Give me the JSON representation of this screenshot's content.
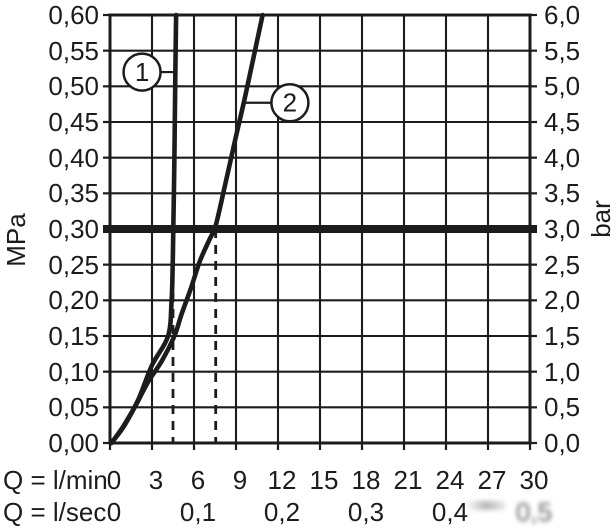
{
  "colors": {
    "ink": "#1c1c1c",
    "background": "#ffffff"
  },
  "chart_data": {
    "type": "line",
    "title": "",
    "description": "Flow rate vs. pressure diagram with two curves and a 0.3 MPa (3 bar) reference line",
    "grid": true,
    "y_axis_left": {
      "unit": "MPa",
      "min": 0,
      "max": 0.6,
      "tick_step": 0.05,
      "tick_labels": [
        "0,60",
        "0,55",
        "0,50",
        "0,45",
        "0,40",
        "0,35",
        "0,30",
        "0,25",
        "0,20",
        "0,15",
        "0,10",
        "0,05",
        "0,00"
      ]
    },
    "y_axis_right": {
      "unit": "bar",
      "min": 0,
      "max": 6,
      "tick_step": 0.5,
      "tick_labels": [
        "6,0",
        "5,5",
        "5,0",
        "4,5",
        "4,0",
        "3,5",
        "3,0",
        "2,5",
        "2,0",
        "1,5",
        "1,0",
        "0,5",
        "0,0"
      ]
    },
    "x_axis": {
      "unit_label": "Q = l/min",
      "min": 0,
      "max": 30,
      "tick_step": 3,
      "tick_labels": [
        "0",
        "3",
        "6",
        "9",
        "12",
        "15",
        "18",
        "21",
        "24",
        "27",
        "30"
      ]
    },
    "x_axis_secondary": {
      "unit_label": "Q = l/sec",
      "ticks": [
        {
          "label": "0",
          "at_lmin": 0,
          "blurred": false
        },
        {
          "label": "0,1",
          "at_lmin": 6,
          "blurred": false
        },
        {
          "label": "0,2",
          "at_lmin": 12,
          "blurred": false
        },
        {
          "label": "0,3",
          "at_lmin": 18,
          "blurred": false
        },
        {
          "label": "0,4",
          "at_lmin": 24,
          "blurred": false
        },
        {
          "label": "0,5",
          "at_lmin": 30,
          "blurred": true
        }
      ]
    },
    "series": [
      {
        "name": "1",
        "points_lmin_mpa": [
          [
            0.1,
            0
          ],
          [
            1.0,
            0.025
          ],
          [
            2.0,
            0.06
          ],
          [
            3.0,
            0.109
          ],
          [
            4.15,
            0.15
          ],
          [
            4.4,
            0.2
          ],
          [
            4.48,
            0.25
          ],
          [
            4.52,
            0.3
          ],
          [
            4.6,
            0.4
          ],
          [
            4.66,
            0.5
          ],
          [
            4.72,
            0.6
          ]
        ]
      },
      {
        "name": "2",
        "points_lmin_mpa": [
          [
            0.1,
            0
          ],
          [
            0.95,
            0.022
          ],
          [
            1.9,
            0.055
          ],
          [
            2.7,
            0.085
          ],
          [
            3.7,
            0.115
          ],
          [
            4.6,
            0.15
          ],
          [
            5.1,
            0.18
          ],
          [
            5.8,
            0.218
          ],
          [
            6.4,
            0.254
          ],
          [
            7.1,
            0.285
          ],
          [
            7.55,
            0.305
          ],
          [
            8.2,
            0.36
          ],
          [
            9.0,
            0.43
          ],
          [
            9.7,
            0.49
          ],
          [
            10.9,
            0.6
          ]
        ]
      }
    ],
    "reference_line": {
      "value_mpa": 0.3,
      "value_bar": 3.0
    },
    "drop_lines": [
      {
        "x_lmin": 4.5
      },
      {
        "x_lmin": 7.55
      }
    ],
    "callouts": [
      {
        "label": "1",
        "center_lmin": 2.29,
        "center_mpa": 0.52,
        "leader_to_lmin": 4.67
      },
      {
        "label": "2",
        "center_lmin": 12.85,
        "center_mpa": 0.477,
        "leader_to_lmin": 9.65
      }
    ]
  }
}
